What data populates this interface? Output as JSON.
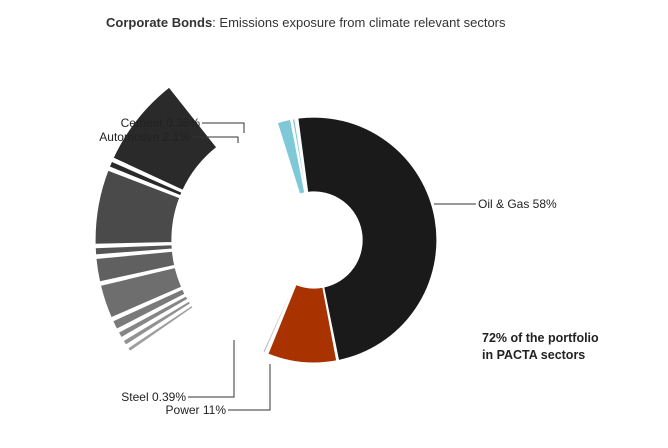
{
  "chart_data": {
    "type": "pie",
    "title_bold": "Corporate Bonds",
    "title_rest": ": Emissions exposure from climate relevant sectors",
    "slices": [
      {
        "label": "Oil & Gas 58%",
        "value": 58,
        "color": "#1a1a1a"
      },
      {
        "label": "Power 11%",
        "value": 11,
        "color": "#a83300"
      },
      {
        "label": "Steel 0.39%",
        "value": 0.39,
        "color": "#c4c4c4"
      },
      {
        "label": "Automotive 2.1%",
        "value": 2.1,
        "color": "#7ec8d8"
      },
      {
        "label": "Cement 0.36%",
        "value": 0.36,
        "color": "#7ec8d8"
      }
    ],
    "other_sectors": [
      {
        "value": 9.0,
        "color": "#2a2a2a"
      },
      {
        "value": 0.8,
        "color": "#2a2a2a"
      },
      {
        "value": 7.5,
        "color": "#4a4a4a"
      },
      {
        "value": 0.9,
        "color": "#555555"
      },
      {
        "value": 2.5,
        "color": "#606060"
      },
      {
        "value": 3.5,
        "color": "#6e6e6e"
      },
      {
        "value": 1.1,
        "color": "#7a7a7a"
      },
      {
        "value": 0.8,
        "color": "#868686"
      },
      {
        "value": 0.7,
        "color": "#929292"
      },
      {
        "value": 0.6,
        "color": "#9e9e9e"
      }
    ],
    "annotation": [
      "72% of the portfolio",
      "in PACTA sectors"
    ]
  }
}
